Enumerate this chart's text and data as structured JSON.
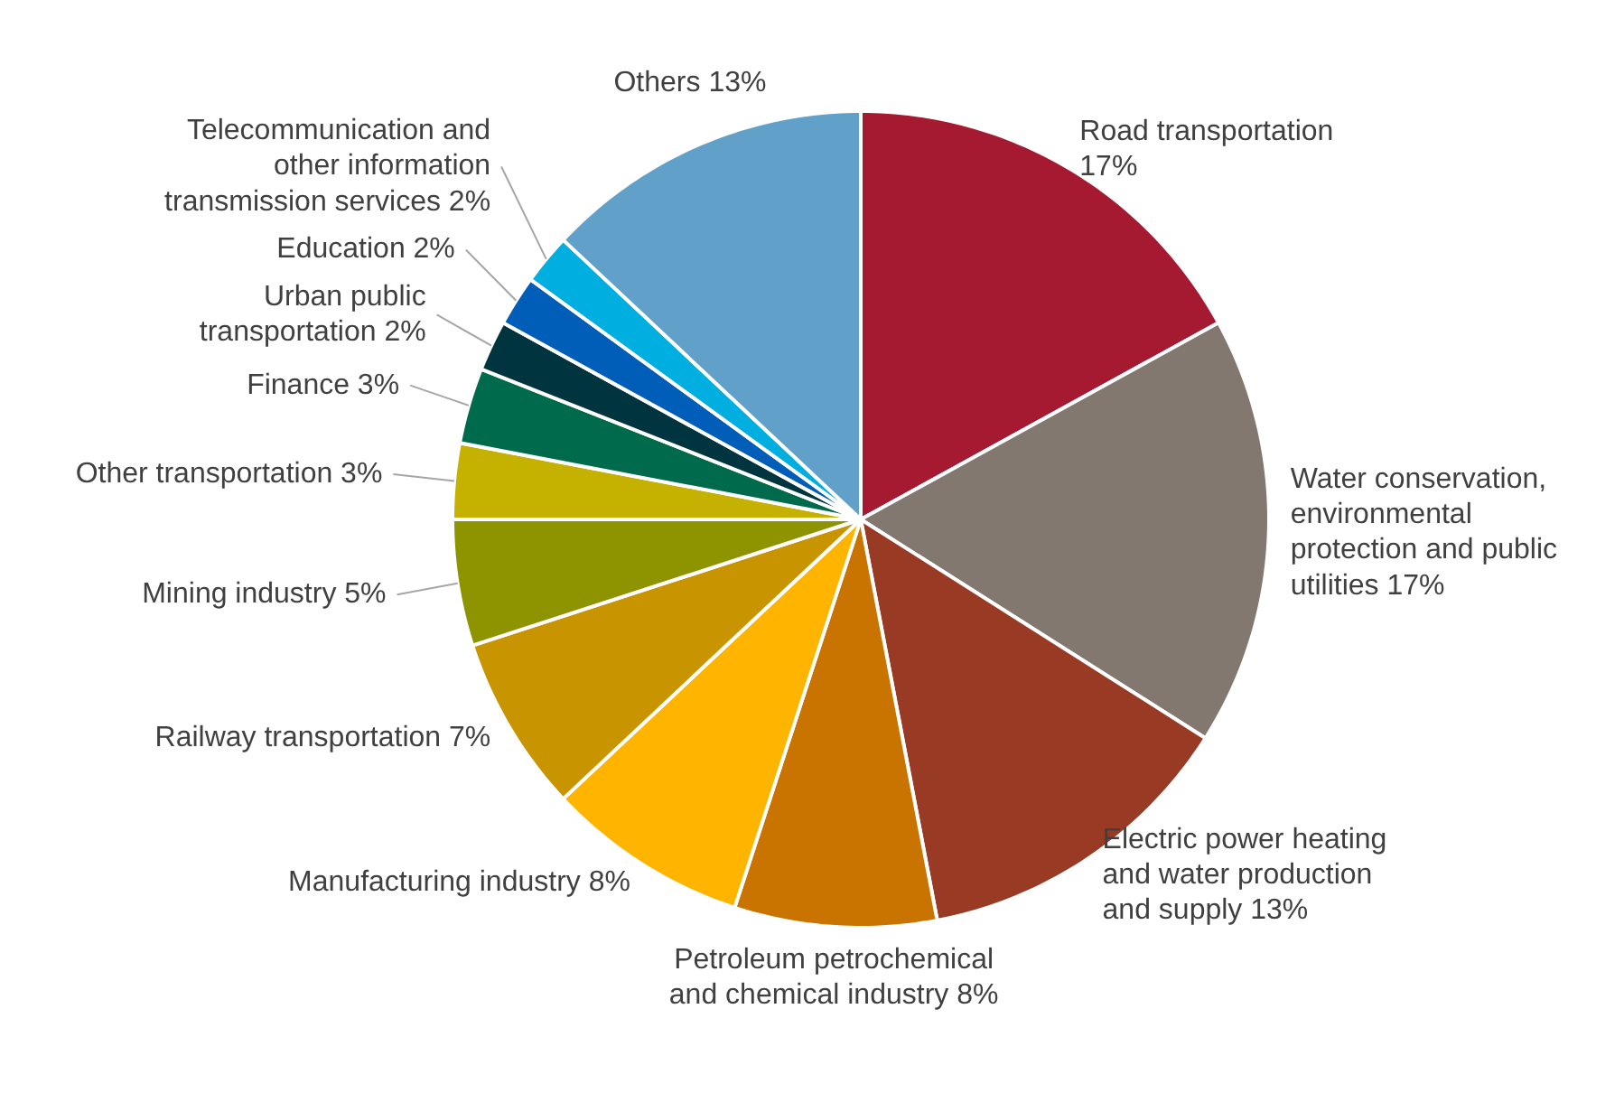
{
  "chart_data": {
    "type": "pie",
    "categories": [
      "Road transportation",
      "Water conservation, environmental protection and public utilities",
      "Electric power heating and water production and supply",
      "Petroleum petrochemical and chemical industry",
      "Manufacturing industry",
      "Railway transportation",
      "Mining industry",
      "Other transportation",
      "Finance",
      "Urban public transportation",
      "Education",
      "Telecommunication and other information transmission services",
      "Others"
    ],
    "values": [
      17,
      17,
      13,
      8,
      8,
      7,
      5,
      3,
      3,
      2,
      2,
      2,
      13
    ],
    "value_labels": [
      "17%",
      "17%",
      "13%",
      "8%",
      "8%",
      "7%",
      "5%",
      "3%",
      "3%",
      "2%",
      "2%",
      "2%",
      "13%"
    ],
    "colors": [
      "#a51931",
      "#82786f",
      "#983a24",
      "#c97400",
      "#ffb500",
      "#c89500",
      "#8d9400",
      "#c4b100",
      "#006a4d",
      "#00343f",
      "#005eb8",
      "#00aee0",
      "#61a1c9"
    ]
  }
}
